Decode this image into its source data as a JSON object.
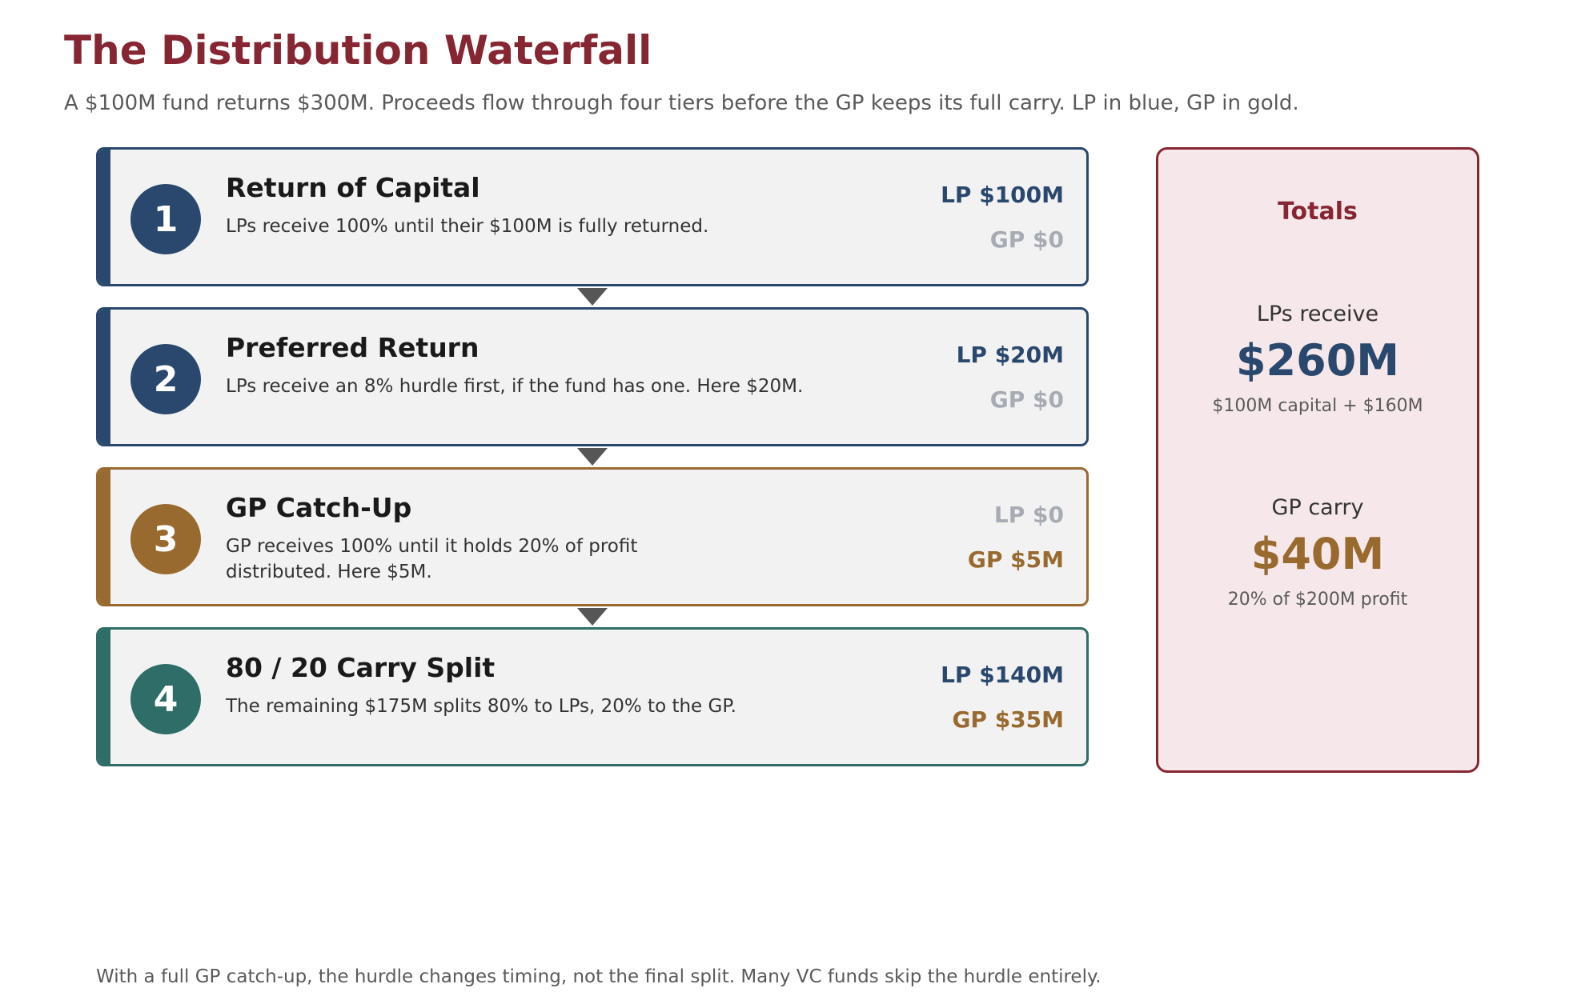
{
  "header": {
    "title": "The Distribution Waterfall",
    "subtitle": "A $100M fund returns $300M. Proceeds flow through four tiers before the GP keeps its full carry. LP in blue, GP in gold."
  },
  "colors": {
    "title": "#862633",
    "lp": "#2a486d",
    "gp": "#996a2f",
    "split": "#2e6d68",
    "muted": "#a7abb3"
  },
  "tiers": [
    {
      "number": "1",
      "title": "Return of Capital",
      "description": "LPs receive 100% until their $100M is fully returned.",
      "lp": "LP $100M",
      "gp": "GP $0"
    },
    {
      "number": "2",
      "title": "Preferred Return",
      "description": "LPs receive an 8% hurdle first, if the fund has one. Here $20M.",
      "lp": "LP $20M",
      "gp": "GP $0"
    },
    {
      "number": "3",
      "title": "GP Catch-Up",
      "description": "GP receives 100% until it holds 20% of profit distributed. Here $5M.",
      "lp": "LP $0",
      "gp": "GP $5M"
    },
    {
      "number": "4",
      "title": "80 / 20 Carry Split",
      "description": "The remaining $175M splits 80% to LPs, 20% to the GP.",
      "lp": "LP $140M",
      "gp": "GP $35M"
    }
  ],
  "totals": {
    "heading": "Totals",
    "lp_label": "LPs receive",
    "lp_value": "$260M",
    "lp_note": "$100M capital + $160M",
    "gp_label": "GP carry",
    "gp_value": "$40M",
    "gp_note": "20% of $200M profit"
  },
  "footnote": "With a full GP catch-up, the hurdle changes timing, not the final split. Many VC funds skip the hurdle entirely."
}
